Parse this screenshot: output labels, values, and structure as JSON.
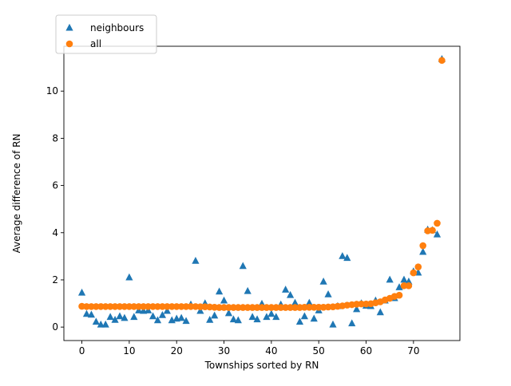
{
  "chart_data": {
    "type": "scatter",
    "title": "",
    "xlabel": "Townships sorted by RN",
    "ylabel": "Average difference of RN",
    "xlim": [
      -3.8,
      79.8
    ],
    "ylim": [
      -0.57,
      11.9
    ],
    "xticks": [
      0,
      10,
      20,
      30,
      40,
      50,
      60,
      70
    ],
    "yticks": [
      0,
      2,
      4,
      6,
      8,
      10
    ],
    "grid": false,
    "legend_position": "top-left",
    "series": [
      {
        "name": "neighbours",
        "marker": "triangle",
        "color": "#1f77b4",
        "x": [
          0,
          1,
          2,
          3,
          4,
          5,
          6,
          7,
          8,
          9,
          10,
          11,
          12,
          13,
          14,
          15,
          16,
          17,
          18,
          19,
          20,
          21,
          22,
          23,
          24,
          25,
          26,
          27,
          28,
          29,
          30,
          31,
          32,
          33,
          34,
          35,
          36,
          37,
          38,
          39,
          40,
          41,
          42,
          43,
          44,
          45,
          46,
          47,
          48,
          49,
          50,
          51,
          52,
          53,
          54,
          55,
          56,
          57,
          58,
          59,
          60,
          61,
          62,
          63,
          64,
          65,
          66,
          67,
          68,
          69,
          70,
          71,
          72,
          73,
          74,
          75,
          76
        ],
        "y": [
          1.45,
          0.55,
          0.52,
          0.22,
          0.1,
          0.1,
          0.42,
          0.3,
          0.45,
          0.38,
          2.1,
          0.42,
          0.7,
          0.68,
          0.7,
          0.45,
          0.28,
          0.5,
          0.68,
          0.28,
          0.35,
          0.38,
          0.25,
          0.95,
          2.8,
          0.68,
          1.0,
          0.3,
          0.48,
          1.5,
          1.12,
          0.58,
          0.32,
          0.28,
          2.58,
          1.52,
          0.42,
          0.32,
          0.98,
          0.42,
          0.55,
          0.42,
          0.95,
          1.58,
          1.35,
          1.02,
          0.22,
          0.45,
          1.02,
          0.35,
          0.7,
          1.92,
          1.38,
          0.1,
          0.88,
          3.0,
          2.92,
          0.15,
          0.75,
          1.0,
          0.9,
          0.88,
          1.12,
          0.62,
          1.12,
          2.0,
          1.22,
          1.68,
          2.0,
          1.92,
          2.35,
          2.3,
          3.18,
          4.12,
          4.1,
          3.92,
          11.35
        ]
      },
      {
        "name": "all",
        "marker": "circle",
        "color": "#ff7f0e",
        "x": [
          0,
          1,
          2,
          3,
          4,
          5,
          6,
          7,
          8,
          9,
          10,
          11,
          12,
          13,
          14,
          15,
          16,
          17,
          18,
          19,
          20,
          21,
          22,
          23,
          24,
          25,
          26,
          27,
          28,
          29,
          30,
          31,
          32,
          33,
          34,
          35,
          36,
          37,
          38,
          39,
          40,
          41,
          42,
          43,
          44,
          45,
          46,
          47,
          48,
          49,
          50,
          51,
          52,
          53,
          54,
          55,
          56,
          57,
          58,
          59,
          60,
          61,
          62,
          63,
          64,
          65,
          66,
          67,
          68,
          69,
          70,
          71,
          72,
          73,
          74,
          75,
          76
        ],
        "y": [
          0.88,
          0.87,
          0.87,
          0.87,
          0.87,
          0.87,
          0.87,
          0.87,
          0.87,
          0.87,
          0.87,
          0.87,
          0.87,
          0.87,
          0.87,
          0.87,
          0.87,
          0.87,
          0.87,
          0.87,
          0.87,
          0.87,
          0.87,
          0.87,
          0.87,
          0.86,
          0.86,
          0.85,
          0.84,
          0.83,
          0.83,
          0.83,
          0.83,
          0.83,
          0.83,
          0.83,
          0.83,
          0.83,
          0.83,
          0.83,
          0.83,
          0.83,
          0.83,
          0.83,
          0.83,
          0.83,
          0.83,
          0.84,
          0.84,
          0.84,
          0.84,
          0.84,
          0.85,
          0.86,
          0.88,
          0.9,
          0.93,
          0.95,
          0.97,
          0.98,
          0.98,
          0.99,
          1.03,
          1.07,
          1.15,
          1.22,
          1.3,
          1.35,
          1.75,
          1.75,
          2.3,
          2.55,
          3.45,
          4.08,
          4.1,
          4.4,
          11.3
        ]
      }
    ]
  }
}
